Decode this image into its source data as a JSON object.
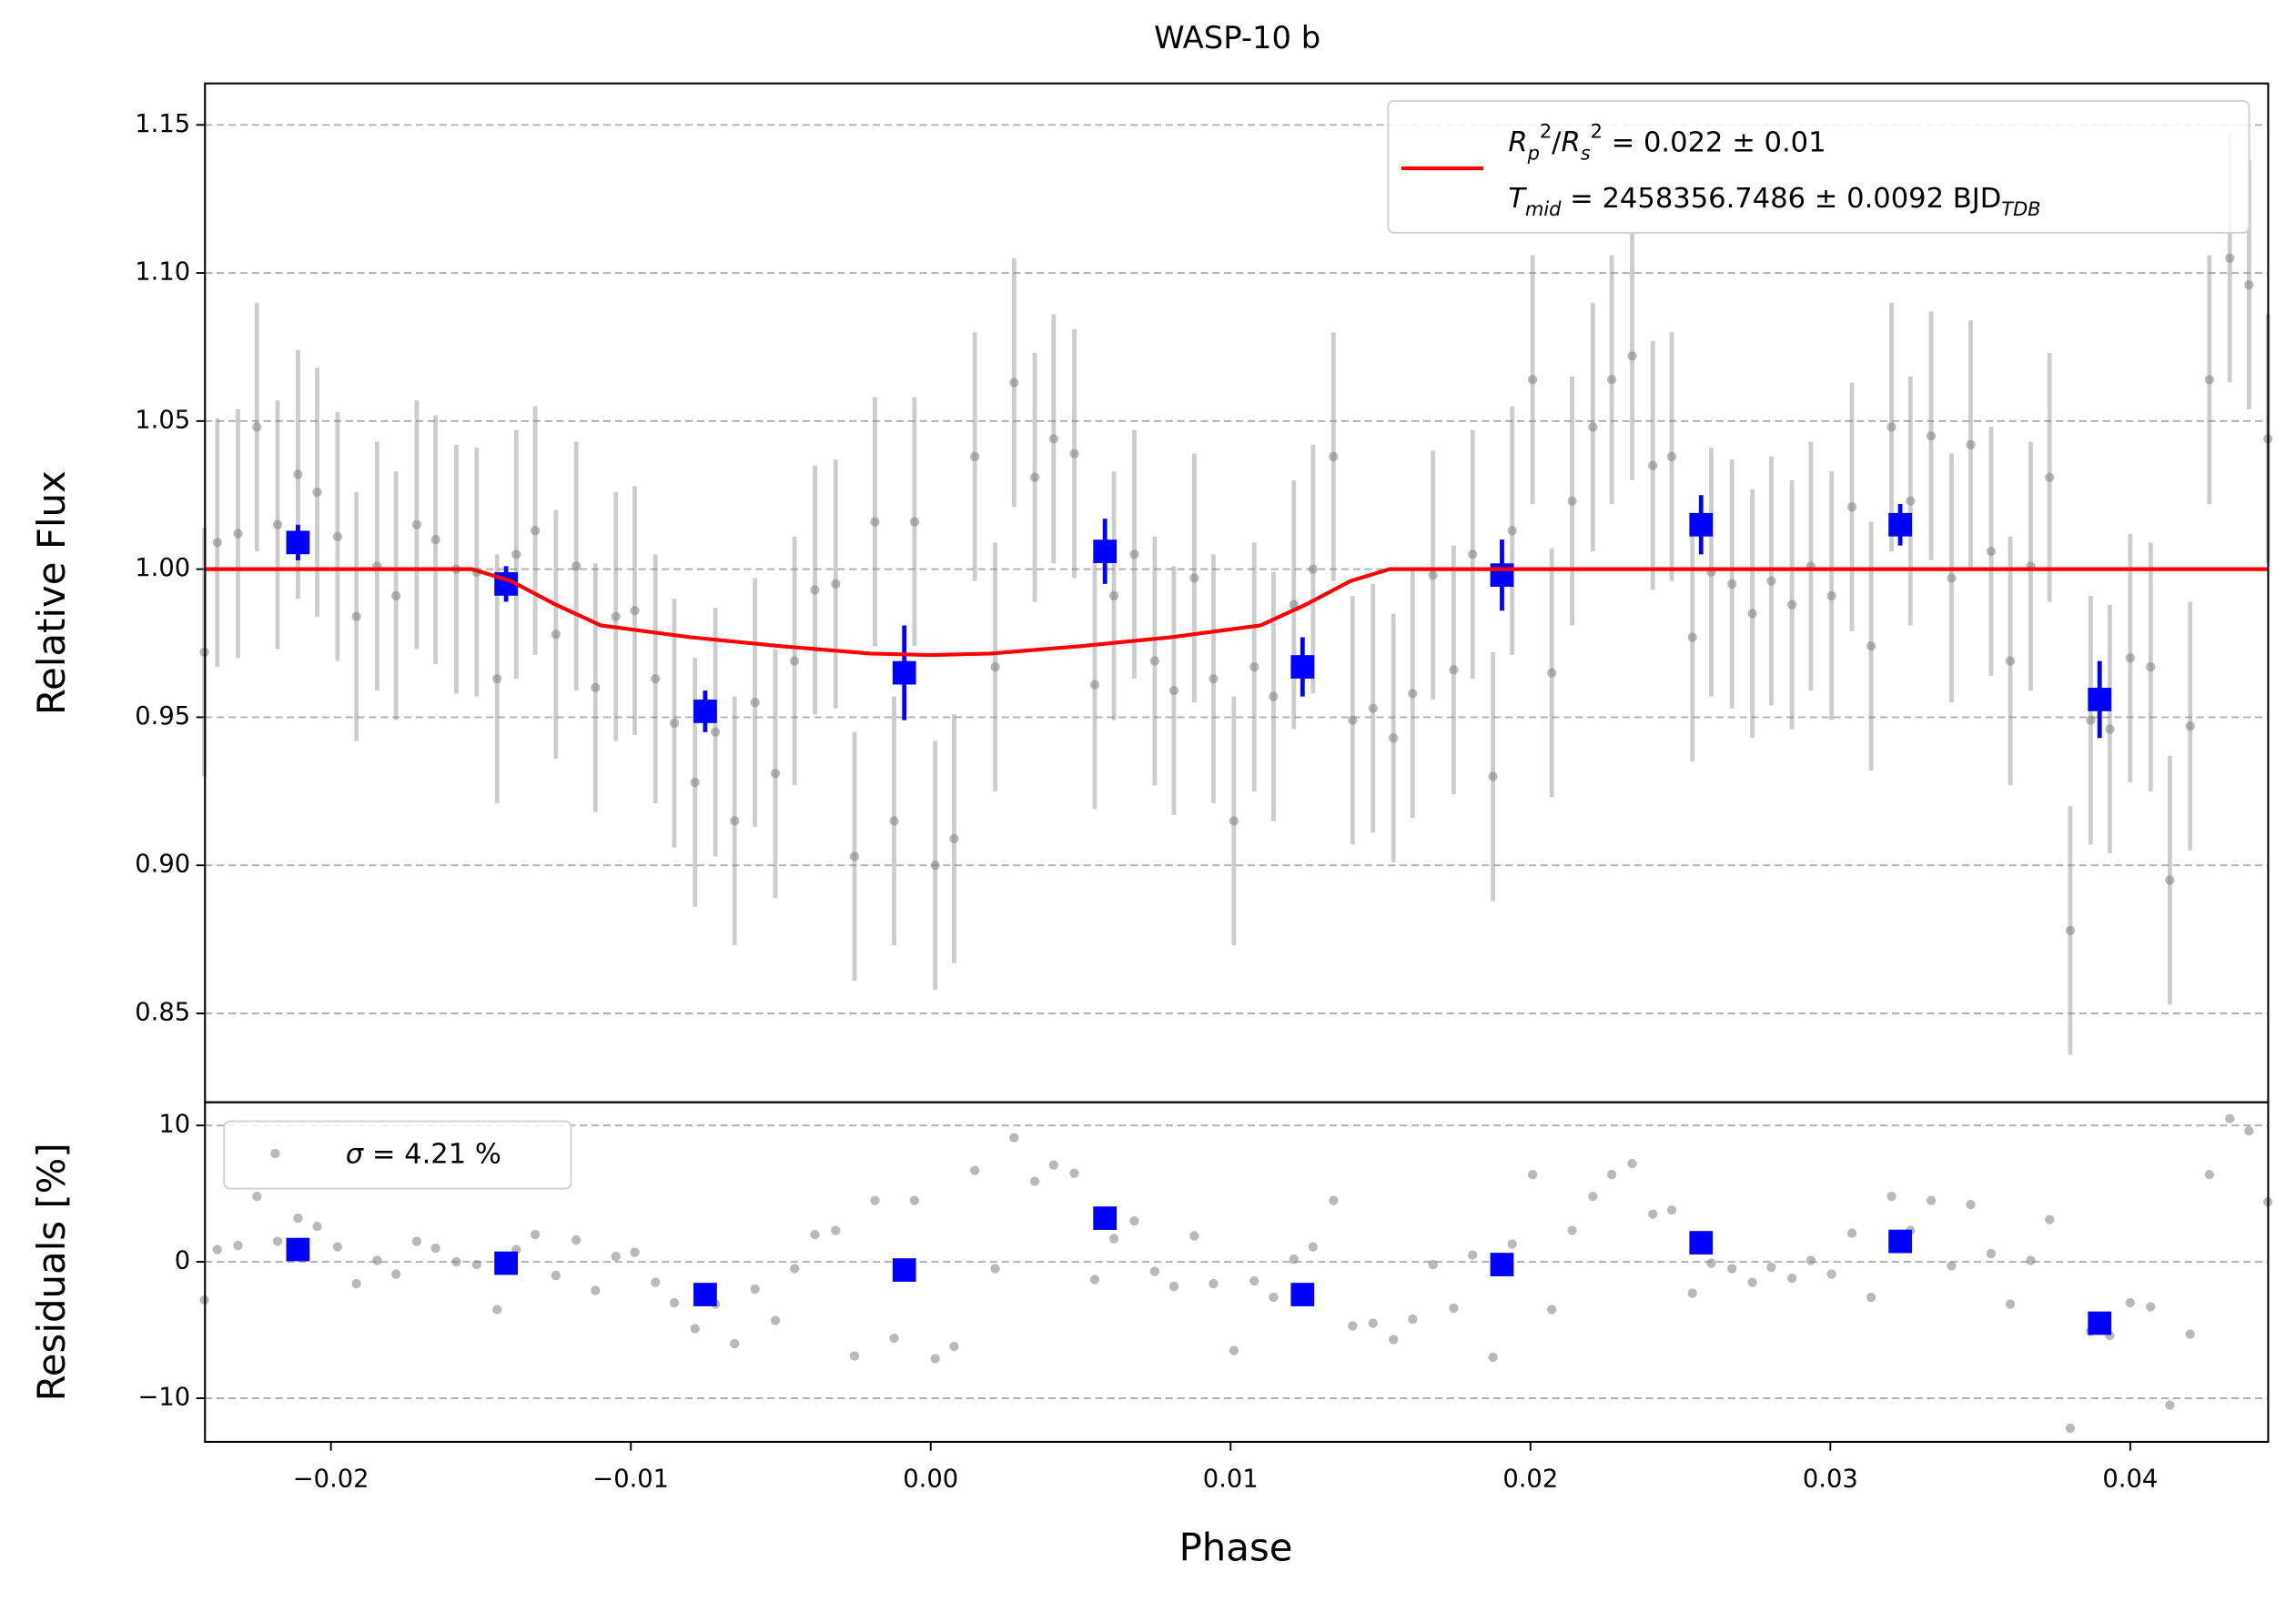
{
  "chart_data": [
    {
      "type": "errorbar",
      "title": "WASP-10 b",
      "ylabel": "Relative Flux",
      "xlim": [
        -0.0242,
        0.0446
      ],
      "ylim": [
        0.82,
        1.164
      ],
      "yticks": [
        0.85,
        {
          "value": 0.9,
          "label": "0.90"
        },
        0.95,
        {
          "value": 1.0,
          "label": "1.00"
        },
        1.05,
        {
          "value": 1.1,
          "label": "1.10"
        },
        1.15
      ],
      "grid": true,
      "legend": "upper right",
      "series": [
        {
          "role": "data",
          "color": "#808080",
          "x": [
            -0.02422,
            -0.02379,
            -0.0231,
            -0.02247,
            -0.02178,
            -0.0211,
            -0.02046,
            -0.01978,
            -0.01915,
            -0.01846,
            -0.01783,
            -0.01714,
            -0.01651,
            -0.01582,
            -0.01514,
            -0.01446,
            -0.01382,
            -0.01319,
            -0.0125,
            -0.01182,
            -0.01118,
            -0.0105,
            -0.00987,
            -0.00918,
            -0.00855,
            -0.00786,
            -0.00718,
            -0.00654,
            -0.00586,
            -0.00518,
            -0.00454,
            -0.00386,
            -0.00317,
            -0.00254,
            -0.00186,
            -0.00122,
            -0.00054,
            0.00015,
            0.00078,
            0.00147,
            0.00215,
            0.00278,
            0.00347,
            0.0041,
            0.00479,
            0.00547,
            0.00611,
            0.00679,
            0.00747,
            0.00811,
            0.00879,
            0.00943,
            0.01011,
            0.01079,
            0.01143,
            0.01211,
            0.01275,
            0.01343,
            0.01407,
            0.01475,
            0.01543,
            0.01607,
            0.01675,
            0.01744,
            0.01807,
            0.01875,
            0.01939,
            0.02007,
            0.02071,
            0.02139,
            0.02208,
            0.02271,
            0.02339,
            0.02408,
            0.02471,
            0.0254,
            0.02603,
            0.02672,
            0.0274,
            0.02803,
            0.02872,
            0.02935,
            0.03004,
            0.03072,
            0.03136,
            0.03204,
            0.03267,
            0.03336,
            0.03404,
            0.03468,
            0.03536,
            0.036,
            0.03668,
            0.03731,
            0.038,
            0.03868,
            0.03932,
            0.04,
            0.04068,
            0.04132,
            0.042,
            0.04264,
            0.04332,
            0.04396,
            0.04459
          ],
          "values": [
            0.972,
            1.009,
            1.012,
            1.048,
            1.015,
            1.032,
            1.026,
            1.011,
            0.984,
            1.001,
            0.991,
            1.015,
            1.01,
            1.0,
            0.999,
            0.963,
            1.005,
            1.013,
            0.978,
            1.001,
            0.96,
            0.984,
            0.986,
            0.963,
            0.948,
            0.928,
            0.945,
            0.915,
            0.955,
            0.931,
            0.969,
            0.993,
            0.995,
            0.903,
            1.016,
            0.915,
            1.016,
            0.9,
            0.909,
            1.038,
            0.967,
            1.063,
            1.031,
            1.044,
            1.039,
            0.961,
            0.991,
            1.005,
            0.969,
            0.959,
            0.997,
            0.963,
            0.915,
            0.967,
            0.957,
            0.988,
            1.0,
            1.038,
            0.949,
            0.953,
            0.943,
            0.958,
            0.998,
            0.966,
            1.005,
            0.93,
            1.013,
            1.064,
            0.965,
            1.023,
            1.048,
            1.064,
            1.072,
            1.035,
            1.038,
            0.977,
            0.999,
            0.995,
            0.985,
            0.996,
            0.988,
            1.001,
            0.991,
            1.021,
            0.974,
            1.048,
            1.023,
            1.045,
            0.997,
            1.042,
            1.006,
            0.969,
            1.001,
            1.031,
            0.878,
            0.949,
            0.946,
            0.97,
            0.967,
            0.895,
            0.947,
            1.064,
            1.105,
            1.096,
            1.044
          ],
          "error": 0.042
        },
        {
          "role": "binned",
          "color": "#0000ff",
          "x": [
            -0.0211,
            -0.01416,
            -0.00752,
            -0.00088,
            0.00581,
            0.0124,
            0.01905,
            0.02569,
            0.03233,
            0.03898
          ],
          "values": [
            1.009,
            0.995,
            0.952,
            0.965,
            1.006,
            0.967,
            0.998,
            1.015,
            1.015,
            0.956
          ],
          "errors": [
            0.006,
            0.006,
            0.007,
            0.016,
            0.011,
            0.01,
            0.012,
            0.01,
            0.007,
            0.013
          ]
        },
        {
          "role": "model",
          "color": "#ff0000",
          "name": [
            [
              "R",
              "p",
              "2",
              "/",
              "R",
              "s",
              "2",
              " = 0.022 ± 0.01"
            ],
            [
              "T",
              "mid",
              " = 2458356.7486 ± 0.0092 BJD",
              "TDB"
            ]
          ],
          "x": [
            -0.0242,
            -0.0153,
            -0.014,
            -0.0125,
            -0.011,
            -0.008,
            -0.005,
            -0.002,
            0,
            0.002,
            0.005,
            0.008,
            0.011,
            0.0125,
            0.014,
            0.0153,
            0.0446
          ],
          "values": [
            1,
            1,
            0.996,
            0.988,
            0.981,
            0.977,
            0.974,
            0.9715,
            0.971,
            0.9715,
            0.974,
            0.977,
            0.981,
            0.988,
            0.996,
            1,
            1
          ]
        }
      ]
    },
    {
      "type": "scatter",
      "ylabel": "Residuals [%]",
      "xlabel": "Phase",
      "xlim": [
        -0.0242,
        0.0446
      ],
      "ylim": [
        -13.2,
        11.7
      ],
      "xticks": [
        {
          "value": -0.02,
          "label": "−0.02"
        },
        {
          "value": -0.01,
          "label": "−0.01"
        },
        {
          "value": 0,
          "label": "0.00"
        },
        0.01,
        0.02,
        0.03,
        0.04
      ],
      "yticks": [
        {
          "value": -10,
          "label": "−10"
        },
        0,
        10
      ],
      "grid": true,
      "legend": "upper left",
      "series": [
        {
          "role": "data",
          "color": "#808080",
          "name": [
            "σ",
            " = 4.21 %"
          ],
          "values": [
            -2.8,
            0.9,
            1.2,
            4.8,
            1.5,
            3.2,
            2.6,
            1.1,
            -1.6,
            0.1,
            -0.9,
            1.5,
            1.0,
            0.0,
            -0.2,
            -3.5,
            0.9,
            2.0,
            -1.0,
            1.6,
            -2.1,
            0.4,
            0.7,
            -1.5,
            -3.0,
            -4.9,
            -3.1,
            -6.0,
            -2.0,
            -4.3,
            -0.5,
            2.0,
            2.3,
            -6.9,
            4.5,
            -5.6,
            4.5,
            -7.1,
            -6.2,
            6.7,
            -0.5,
            9.1,
            5.9,
            7.1,
            6.5,
            -1.3,
            1.7,
            3.0,
            -0.7,
            -1.8,
            1.9,
            -1.6,
            -6.5,
            -1.4,
            -2.6,
            0.2,
            1.1,
            4.5,
            -4.7,
            -4.5,
            -5.7,
            -4.2,
            -0.2,
            -3.4,
            0.5,
            -7.0,
            1.3,
            6.4,
            -3.5,
            2.3,
            4.8,
            6.4,
            7.2,
            3.5,
            3.8,
            -2.3,
            -0.1,
            -0.5,
            -1.5,
            -0.4,
            -1.2,
            0.1,
            -0.9,
            2.1,
            -2.6,
            4.8,
            2.3,
            4.5,
            -0.3,
            4.2,
            0.6,
            -3.1,
            0.1,
            3.1,
            -12.2,
            -5.1,
            -5.4,
            -3.0,
            -3.3,
            -10.5,
            -5.3,
            6.4,
            10.5,
            9.6,
            4.4
          ]
        },
        {
          "role": "binned",
          "color": "#0000ff",
          "values": [
            0.9,
            -0.1,
            -2.4,
            -0.6,
            3.2,
            -2.4,
            -0.2,
            1.4,
            1.5,
            -4.5
          ]
        }
      ]
    }
  ]
}
